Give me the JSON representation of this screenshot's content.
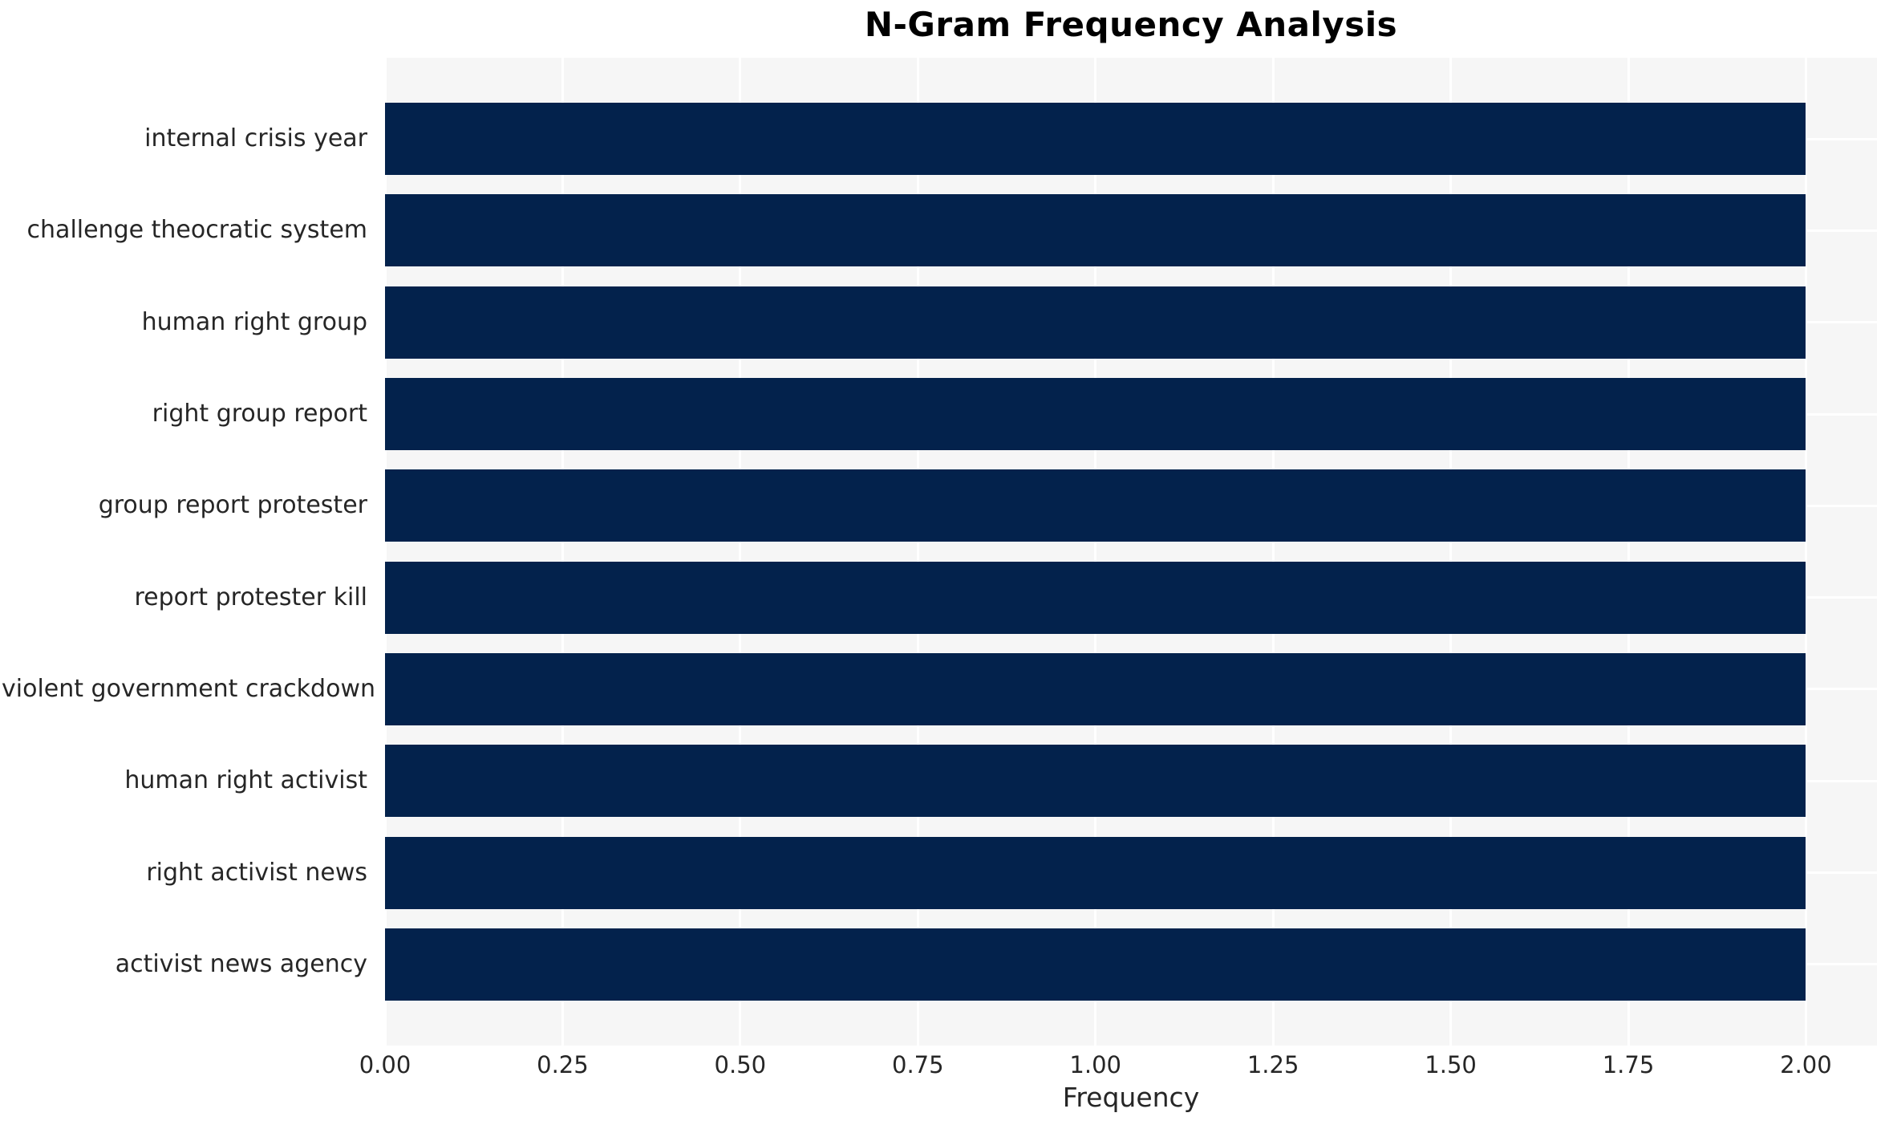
{
  "chart_data": {
    "type": "bar",
    "orientation": "horizontal",
    "title": "N-Gram Frequency Analysis",
    "xlabel": "Frequency",
    "ylabel": "",
    "categories": [
      "internal crisis year",
      "challenge theocratic system",
      "human right group",
      "right group report",
      "group report protester",
      "report protester kill",
      "violent government crackdown",
      "human right activist",
      "right activist news",
      "activist news agency"
    ],
    "values": [
      2,
      2,
      2,
      2,
      2,
      2,
      2,
      2,
      2,
      2
    ],
    "xlim": [
      0,
      2.1
    ],
    "xticks": [
      0,
      0.25,
      0.5,
      0.75,
      1,
      1.25,
      1.5,
      1.75,
      2
    ],
    "xtick_labels": [
      "0.00",
      "0.25",
      "0.50",
      "0.75",
      "1.00",
      "1.25",
      "1.50",
      "1.75",
      "2.00"
    ],
    "legend": "none",
    "grid": "white gridlines under bars, vertical at ticks and horizontal at category centers",
    "colors": {
      "bar": "#03224c",
      "plot_background": "#f6f6f6",
      "gridline": "#ffffff",
      "tick_text": "#262626",
      "title_text": "#000000",
      "figure_background": "#ffffff"
    }
  }
}
